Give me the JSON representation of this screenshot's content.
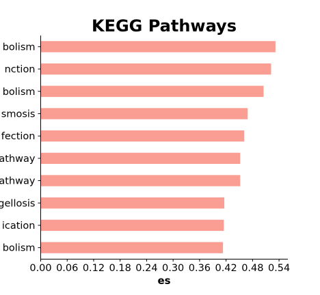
{
  "chart_data": {
    "type": "bar",
    "orientation": "horizontal",
    "title": "KEGG Pathways",
    "xlabel": "es",
    "ylabel": "",
    "categories": [
      "bolism",
      "nction",
      "bolism",
      "smosis",
      "fection",
      "athway",
      "athway",
      "gellosis",
      "ication",
      "bolism"
    ],
    "values": [
      0.532,
      0.522,
      0.505,
      0.469,
      0.461,
      0.452,
      0.452,
      0.416,
      0.415,
      0.413
    ],
    "xlim": [
      0,
      0.56
    ],
    "xticks": [
      "0.00",
      "0.06",
      "0.12",
      "0.18",
      "0.24",
      "0.30",
      "0.36",
      "0.42",
      "0.48",
      "0.54"
    ],
    "bar_color": "#fa9e93",
    "grid": false,
    "legend": "none"
  }
}
